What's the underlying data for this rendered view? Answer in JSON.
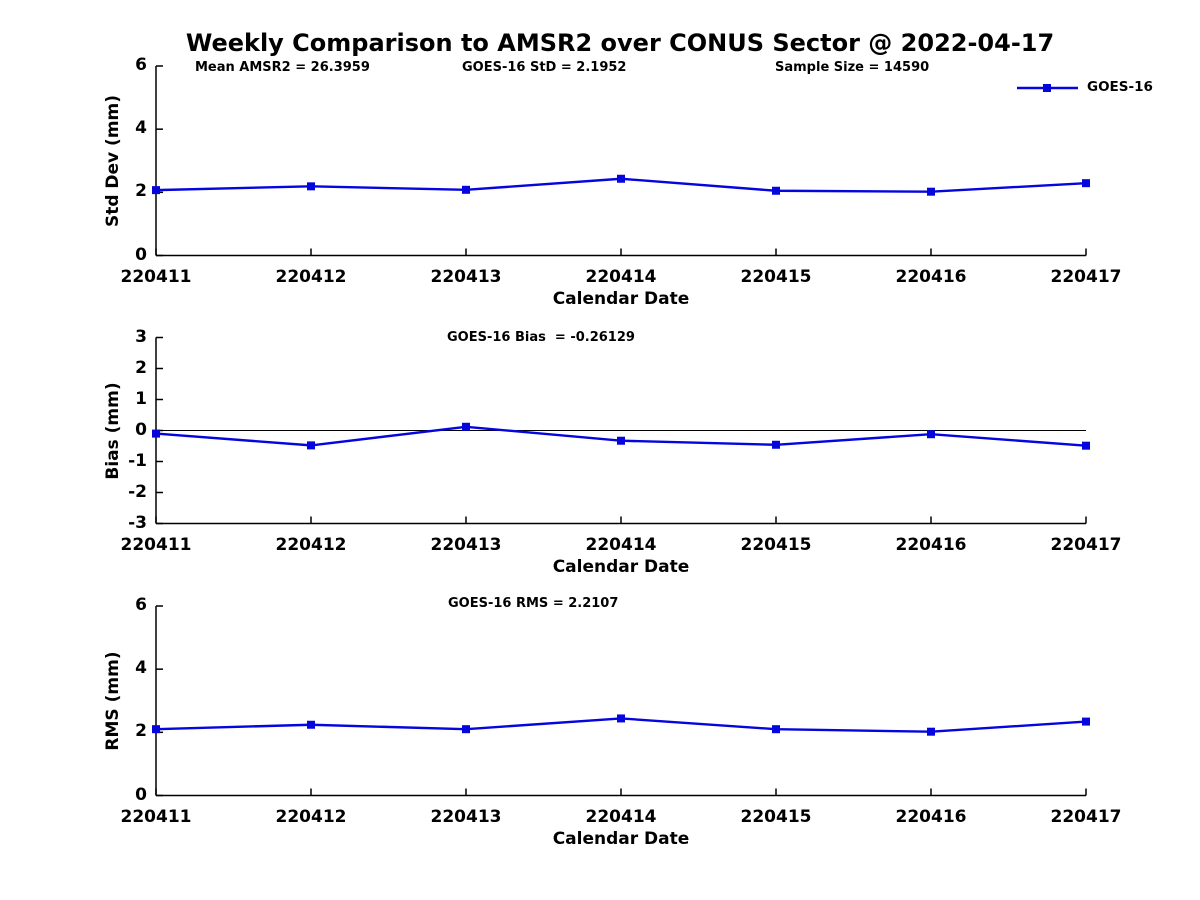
{
  "title": "Weekly Comparison to AMSR2 over CONUS Sector @ 2022-04-17",
  "legend": {
    "label": "GOES-16"
  },
  "colors": {
    "series": "#0505dd",
    "axis": "#000000",
    "text": "#000000",
    "zero_line": "#000000"
  },
  "chart_data": [
    {
      "type": "line",
      "name": "stddev",
      "ylabel": "Std Dev (mm)",
      "xlabel": "Calendar Date",
      "categories": [
        "220411",
        "220412",
        "220413",
        "220414",
        "220415",
        "220416",
        "220417"
      ],
      "series": [
        {
          "name": "GOES-16",
          "values": [
            2.07,
            2.19,
            2.08,
            2.43,
            2.05,
            2.02,
            2.29
          ]
        }
      ],
      "ylim": [
        0,
        6
      ],
      "yticks": [
        0,
        2,
        4,
        6
      ],
      "grid": false,
      "legend_position": "top-right-outside",
      "annotations": [
        "Mean AMSR2 = 26.3959",
        "GOES-16 StD = 2.1952",
        "Sample Size = 14590"
      ]
    },
    {
      "type": "line",
      "name": "bias",
      "ylabel": "Bias (mm)",
      "xlabel": "Calendar Date",
      "categories": [
        "220411",
        "220412",
        "220413",
        "220414",
        "220415",
        "220416",
        "220417"
      ],
      "series": [
        {
          "name": "GOES-16",
          "values": [
            -0.1,
            -0.48,
            0.12,
            -0.33,
            -0.46,
            -0.12,
            -0.49
          ]
        }
      ],
      "ylim": [
        -3,
        3
      ],
      "yticks": [
        -3,
        -2,
        -1,
        0,
        1,
        2,
        3
      ],
      "zero_line": true,
      "grid": false,
      "annotations": [
        "GOES-16 Bias  = -0.26129"
      ]
    },
    {
      "type": "line",
      "name": "rms",
      "ylabel": "RMS (mm)",
      "xlabel": "Calendar Date",
      "categories": [
        "220411",
        "220412",
        "220413",
        "220414",
        "220415",
        "220416",
        "220417"
      ],
      "series": [
        {
          "name": "GOES-16",
          "values": [
            2.1,
            2.24,
            2.1,
            2.44,
            2.1,
            2.02,
            2.34
          ]
        }
      ],
      "ylim": [
        0,
        6
      ],
      "yticks": [
        0,
        2,
        4,
        6
      ],
      "grid": false,
      "annotations": [
        "GOES-16 RMS = 2.2107"
      ]
    }
  ]
}
